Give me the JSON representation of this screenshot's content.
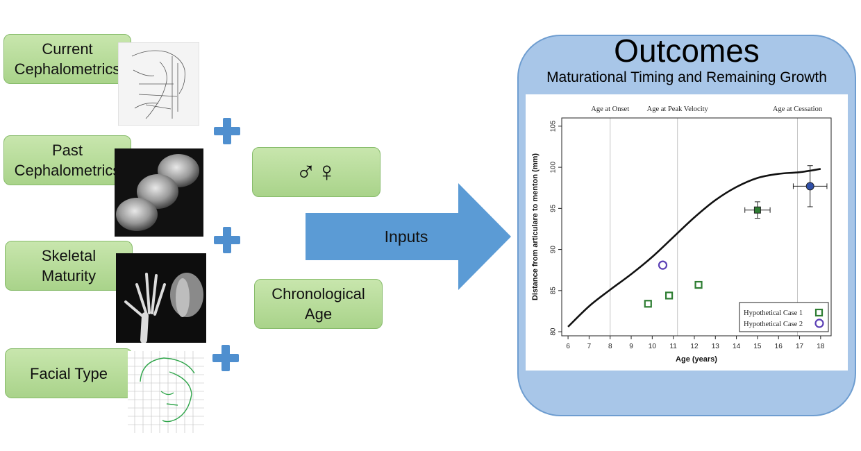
{
  "inputs": [
    {
      "label": "Current\nCephalometrics"
    },
    {
      "label": "Past\nCephalometrics"
    },
    {
      "label": "Skeletal\nMaturity"
    },
    {
      "label": "Facial Type"
    }
  ],
  "sex_symbols": "♂♀",
  "chronological_age": "Chronological\nAge",
  "arrow_label": "Inputs",
  "outcomes": {
    "title": "Outcomes",
    "subtitle": "Maturational Timing and Remaining Growth"
  },
  "chart_data": {
    "type": "line",
    "xlabel": "Age (years)",
    "ylabel": "Distance from articulare to menton (mm)",
    "xlim": [
      5.7,
      18.5
    ],
    "ylim": [
      79.5,
      106
    ],
    "xticks": [
      6,
      7,
      8,
      9,
      10,
      11,
      12,
      13,
      14,
      15,
      16,
      17,
      18
    ],
    "yticks": [
      80,
      85,
      90,
      95,
      100,
      105
    ],
    "vertical_lines": [
      {
        "x": 8.0,
        "label": "Age at Onset"
      },
      {
        "x": 11.2,
        "label": "Age at Peak Velocity"
      },
      {
        "x": 16.9,
        "label": "Age at Cessation"
      }
    ],
    "curve": {
      "x": [
        6,
        7,
        8,
        9,
        10,
        11,
        12,
        13,
        14,
        15,
        16,
        17,
        18
      ],
      "y": [
        80.6,
        83.1,
        85.1,
        87.0,
        89.1,
        91.5,
        93.9,
        96.0,
        97.6,
        98.7,
        99.2,
        99.4,
        99.8
      ]
    },
    "series": [
      {
        "name": "Hypothetical Case 1",
        "marker": "square",
        "points": [
          {
            "x": 9.8,
            "y": 83.4
          },
          {
            "x": 10.8,
            "y": 84.4
          },
          {
            "x": 12.2,
            "y": 85.7
          }
        ],
        "prediction": {
          "x": 15.0,
          "y": 94.8,
          "xerr": 0.6,
          "yerr": 1.0
        }
      },
      {
        "name": "Hypothetical Case 2",
        "marker": "circle",
        "points": [
          {
            "x": 10.5,
            "y": 88.1
          }
        ],
        "prediction": {
          "x": 17.5,
          "y": 97.7,
          "xerr": 0.8,
          "yerr": 2.5
        }
      }
    ],
    "legend": "bottom-right"
  },
  "colors": {
    "case1": "#2e7d32",
    "case2": "#5b3fb5",
    "accent_blue": "#4f8fcf"
  }
}
